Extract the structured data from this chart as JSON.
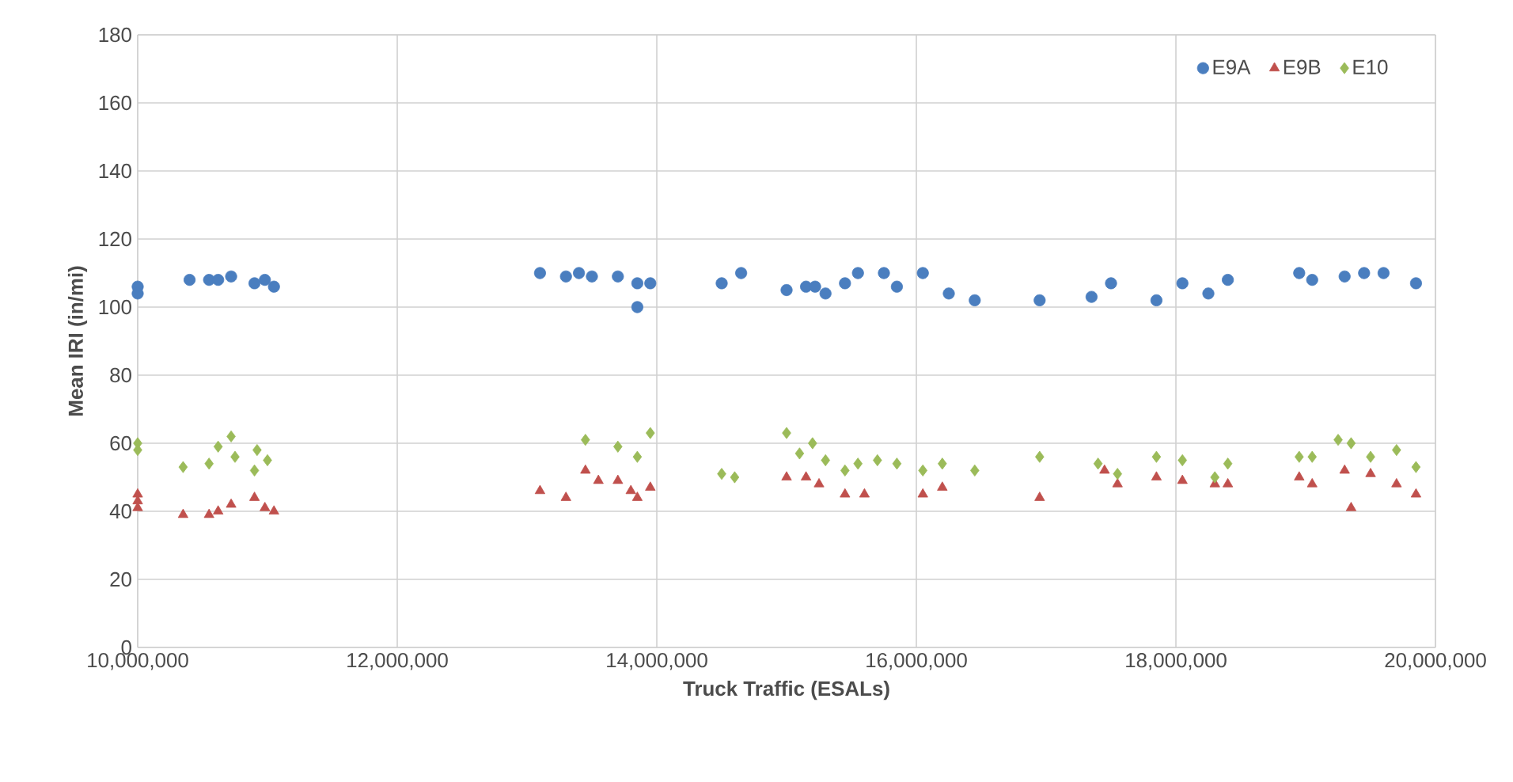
{
  "chart_data": {
    "type": "scatter",
    "xlabel": "Truck Traffic (ESALs)",
    "ylabel": "Mean IRI (in/mi)",
    "xlim": [
      10000000,
      20000000
    ],
    "xticks": [
      {
        "value": 10000000,
        "label": "10,000,000"
      },
      {
        "value": 12000000,
        "label": "12,000,000"
      },
      {
        "value": 14000000,
        "label": "14,000,000"
      },
      {
        "value": 16000000,
        "label": "16,000,000"
      },
      {
        "value": 18000000,
        "label": "18,000,000"
      },
      {
        "value": 20000000,
        "label": "20,000,000"
      }
    ],
    "ylim": [
      0,
      180
    ],
    "yticks": [
      0,
      20,
      40,
      60,
      80,
      100,
      120,
      140,
      160,
      180
    ],
    "grid": true,
    "legend": "top right",
    "series": [
      {
        "name": "E9A",
        "color": "#4a7ebf",
        "marker": "circle",
        "x": [
          10000000,
          10000000,
          10400000,
          10550000,
          10620000,
          10720000,
          10900000,
          10980000,
          11050000,
          13100000,
          13300000,
          13400000,
          13500000,
          13700000,
          13850000,
          13850000,
          13950000,
          14500000,
          14650000,
          15000000,
          15150000,
          15220000,
          15300000,
          15450000,
          15550000,
          15750000,
          15850000,
          16050000,
          16250000,
          16450000,
          16950000,
          17350000,
          17500000,
          17850000,
          18050000,
          18250000,
          18400000,
          18950000,
          19050000,
          19300000,
          19450000,
          19600000,
          19850000
        ],
        "values": [
          106,
          104,
          108,
          108,
          108,
          109,
          107,
          108,
          106,
          110,
          109,
          110,
          109,
          109,
          107,
          100,
          107,
          107,
          110,
          105,
          106,
          106,
          104,
          107,
          110,
          110,
          106,
          110,
          104,
          102,
          102,
          103,
          107,
          102,
          107,
          104,
          108,
          110,
          108,
          109,
          110,
          110,
          107
        ]
      },
      {
        "name": "E9B",
        "color": "#c0504d",
        "marker": "triangle",
        "x": [
          10000000,
          10000000,
          10000000,
          10350000,
          10550000,
          10620000,
          10720000,
          10900000,
          10980000,
          11050000,
          13100000,
          13300000,
          13450000,
          13550000,
          13700000,
          13800000,
          13850000,
          13950000,
          15000000,
          15150000,
          15250000,
          15450000,
          15600000,
          16050000,
          16200000,
          16950000,
          17450000,
          17550000,
          17850000,
          18050000,
          18300000,
          18400000,
          18950000,
          19050000,
          19300000,
          19350000,
          19500000,
          19700000,
          19850000
        ],
        "values": [
          41,
          43,
          45,
          39,
          39,
          40,
          42,
          44,
          41,
          40,
          46,
          44,
          52,
          49,
          49,
          46,
          44,
          47,
          50,
          50,
          48,
          45,
          45,
          45,
          47,
          44,
          52,
          48,
          50,
          49,
          48,
          48,
          50,
          48,
          52,
          41,
          51,
          48,
          45
        ]
      },
      {
        "name": "E10",
        "color": "#9bbb59",
        "marker": "diamond",
        "x": [
          10000000,
          10000000,
          10350000,
          10550000,
          10620000,
          10720000,
          10750000,
          10900000,
          10920000,
          11000000,
          13450000,
          13700000,
          13850000,
          13950000,
          14500000,
          14600000,
          15000000,
          15100000,
          15200000,
          15300000,
          15450000,
          15550000,
          15700000,
          15850000,
          16050000,
          16200000,
          16450000,
          16950000,
          17400000,
          17550000,
          17850000,
          18050000,
          18300000,
          18400000,
          18950000,
          19050000,
          19250000,
          19350000,
          19500000,
          19700000,
          19850000
        ],
        "values": [
          60,
          58,
          53,
          54,
          59,
          62,
          56,
          52,
          58,
          55,
          61,
          59,
          56,
          63,
          51,
          50,
          63,
          57,
          60,
          55,
          52,
          54,
          55,
          54,
          52,
          54,
          52,
          56,
          54,
          51,
          56,
          55,
          50,
          54,
          56,
          56,
          61,
          60,
          56,
          58,
          53
        ]
      }
    ]
  }
}
